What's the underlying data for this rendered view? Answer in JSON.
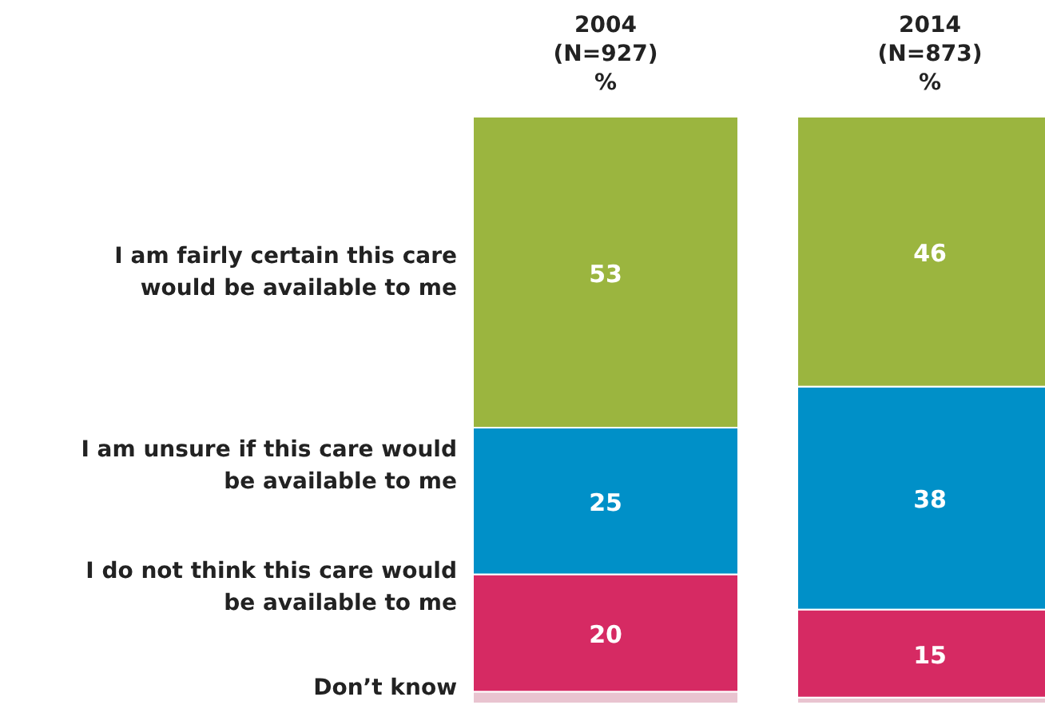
{
  "chart_data": {
    "type": "bar",
    "stacked": true,
    "ylim": [
      0,
      100
    ],
    "categories": [
      "2004\n(N=927)\n%",
      "2014\n(N=873)\n%"
    ],
    "series": [
      {
        "name": "Don’t know",
        "color": "#e9c4d0",
        "values": [
          2,
          1
        ],
        "value_labels": [
          null,
          null
        ]
      },
      {
        "name": "I do not think this care would be available to me",
        "color": "#d62a63",
        "values": [
          20,
          15
        ],
        "value_labels": [
          "20",
          "15"
        ]
      },
      {
        "name": "I am unsure if this care would be available to me",
        "color": "#0090c8",
        "values": [
          25,
          38
        ],
        "value_labels": [
          "25",
          "38"
        ]
      },
      {
        "name": "I am fairly certain this care would be available to me",
        "color": "#9bb53f",
        "values": [
          53,
          46
        ],
        "value_labels": [
          "53",
          "46"
        ]
      }
    ]
  }
}
